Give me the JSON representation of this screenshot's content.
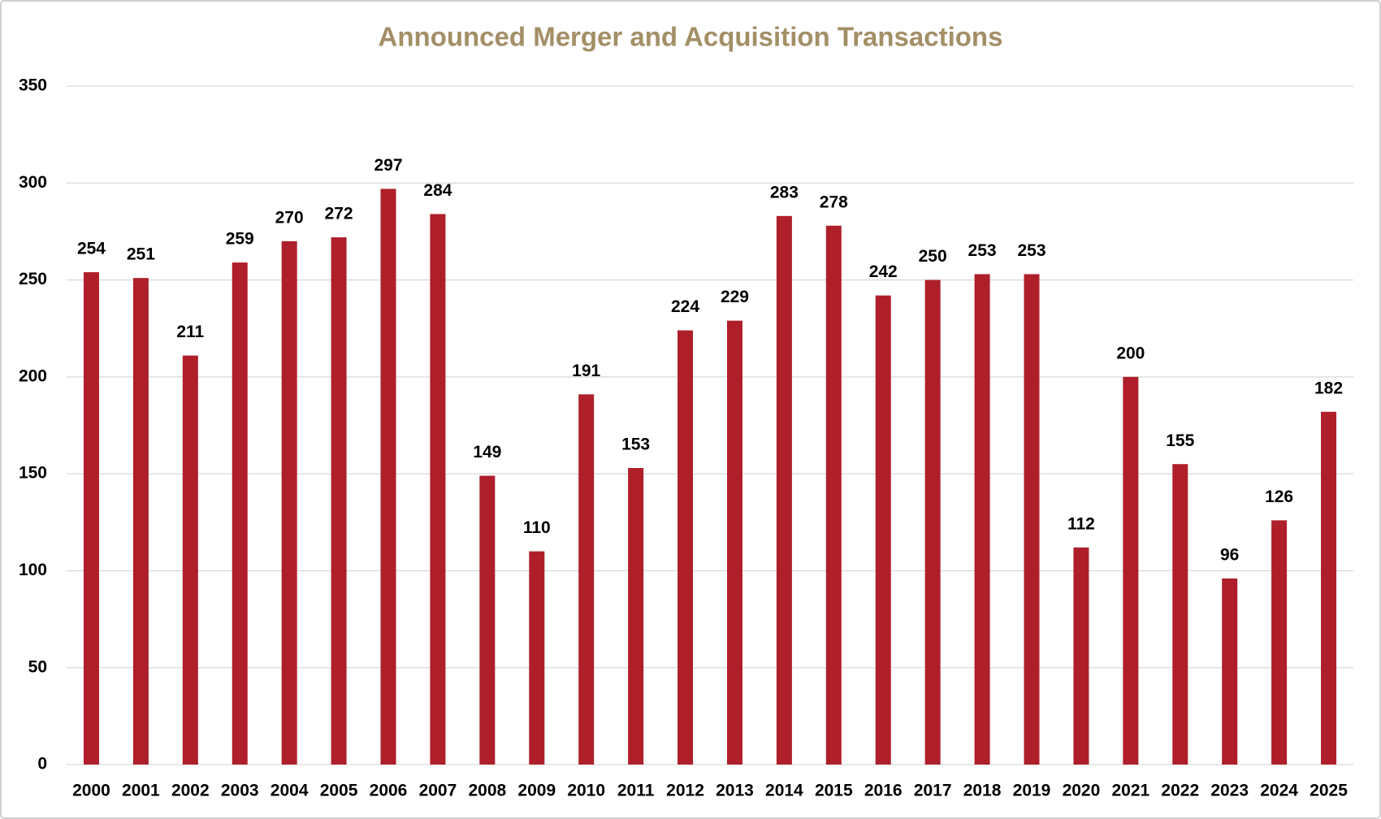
{
  "chart_data": {
    "type": "bar",
    "title": "Announced Merger and Acquisition Transactions",
    "categories": [
      "2000",
      "2001",
      "2002",
      "2003",
      "2004",
      "2005",
      "2006",
      "2007",
      "2008",
      "2009",
      "2010",
      "2011",
      "2012",
      "2013",
      "2014",
      "2015",
      "2016",
      "2017",
      "2018",
      "2019",
      "2020",
      "2021",
      "2022",
      "2023",
      "2024",
      "2025"
    ],
    "values": [
      254,
      251,
      211,
      259,
      270,
      272,
      297,
      284,
      149,
      110,
      191,
      153,
      224,
      229,
      283,
      278,
      242,
      250,
      253,
      253,
      112,
      200,
      155,
      96,
      126,
      182
    ],
    "color": "#ae1f2a",
    "ylim": [
      0,
      350
    ],
    "yticks": [
      0,
      50,
      100,
      150,
      200,
      250,
      300,
      350
    ],
    "grid": true
  }
}
